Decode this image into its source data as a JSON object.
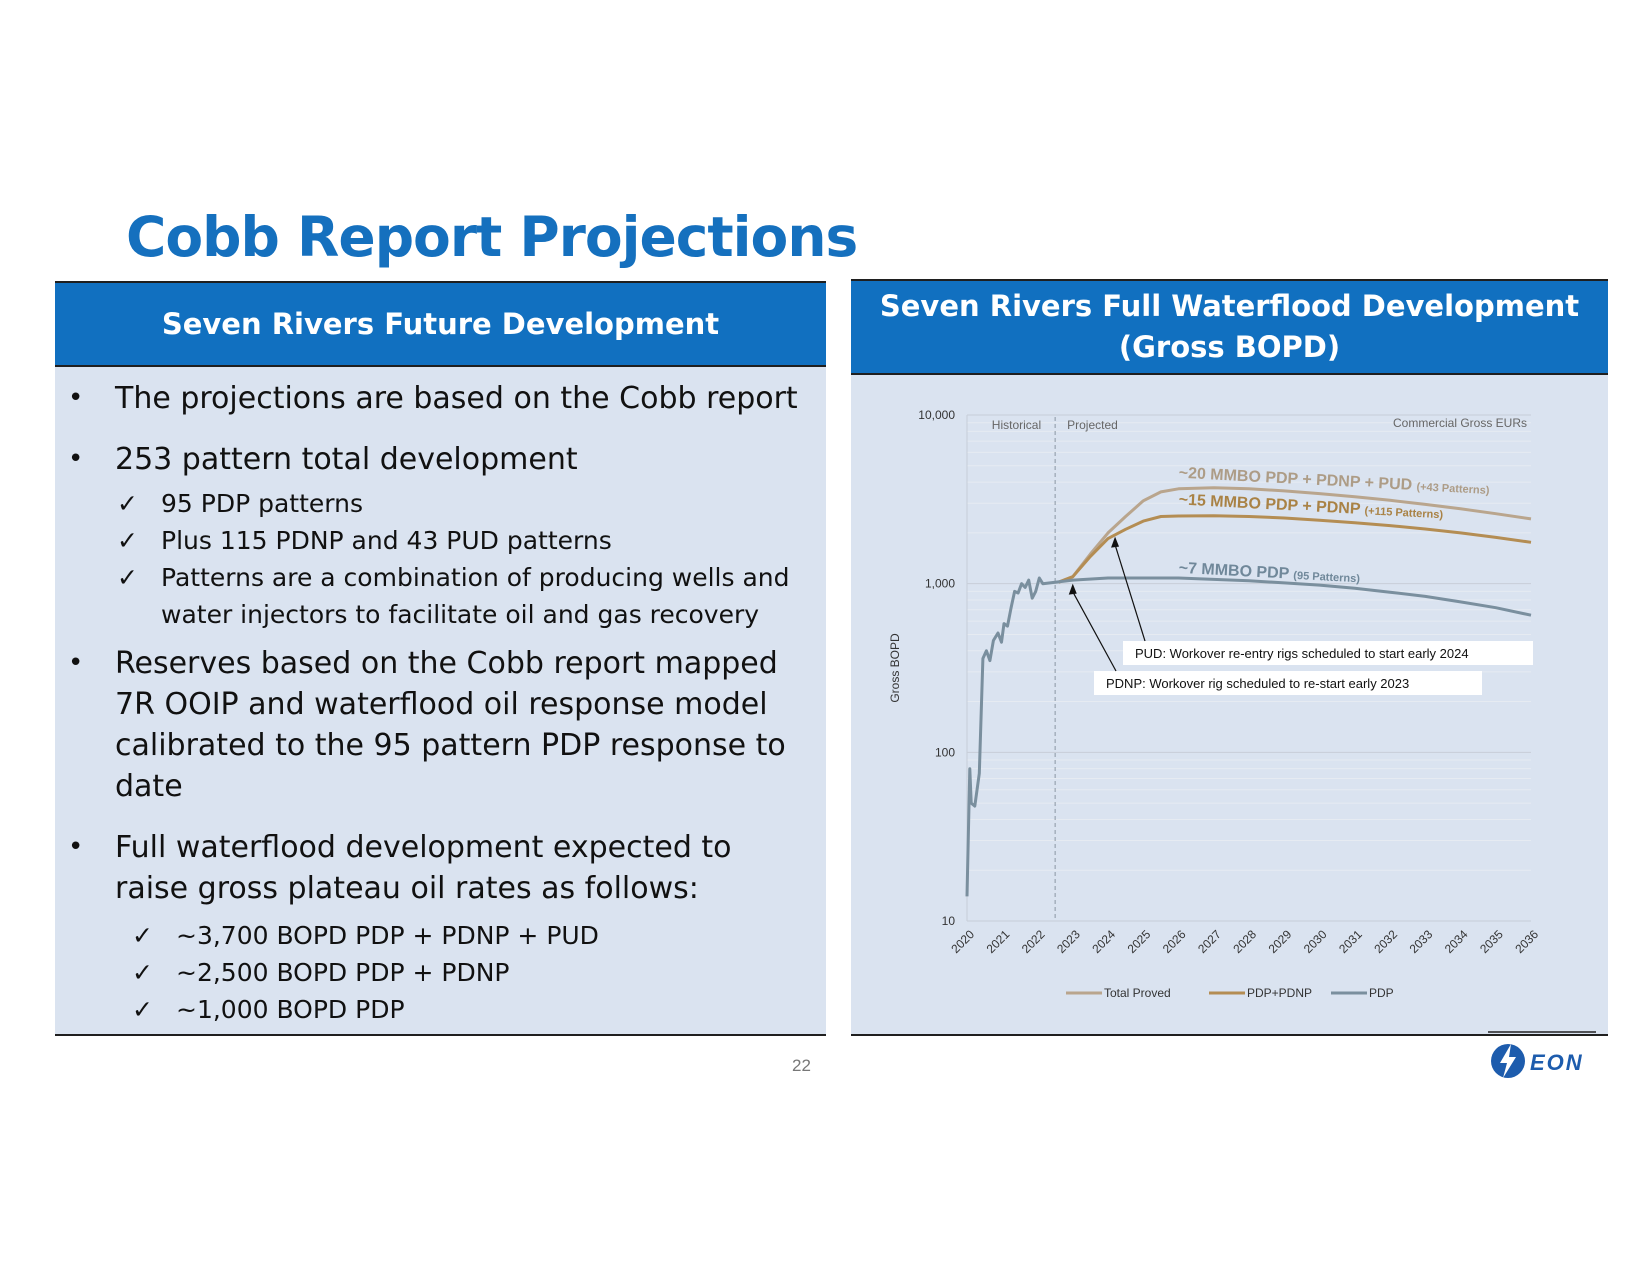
{
  "page": {
    "title": "Cobb Report Projections",
    "page_number": "22"
  },
  "left_panel": {
    "header": "Seven Rivers Future Development",
    "bullets": [
      {
        "text": "The projections are based on the Cobb report"
      },
      {
        "text": "253 pattern total development"
      },
      {
        "text": "Reserves based on the Cobb report mapped 7R OOIP and waterflood oil response model calibrated to the 95 pattern PDP response to date"
      },
      {
        "text": "Full waterflood development expected to raise gross plateau oil rates as follows:"
      }
    ],
    "sub_bullets_a": [
      "95 PDP patterns",
      "Plus 115 PDNP and 43 PUD patterns",
      "Patterns are a combination of producing wells and water injectors to facilitate oil and gas recovery"
    ],
    "sub_bullets_b": [
      "~3,700 BOPD PDP + PDNP + PUD",
      "~2,500 BOPD PDP + PDNP",
      "~1,000 BOPD PDP"
    ],
    "bullet_glyph": "•",
    "check_glyph": "✓"
  },
  "right_panel": {
    "header_line1": "Seven Rivers Full Waterflood Development",
    "header_line2": "(Gross BOPD)"
  },
  "logo": {
    "text": "EON"
  },
  "chart_data": {
    "type": "line",
    "y_scale": "log",
    "ylabel": "Gross BOPD",
    "ylim": [
      10,
      10000
    ],
    "y_ticks": [
      "10",
      "100",
      "1,000",
      "10,000"
    ],
    "x_ticks": [
      "2020",
      "2021",
      "2022",
      "2023",
      "2024",
      "2025",
      "2026",
      "2027",
      "2028",
      "2029",
      "2030",
      "2031",
      "2032",
      "2033",
      "2034",
      "2035",
      "2036"
    ],
    "xlim": [
      2020,
      2036
    ],
    "region_labels": {
      "historical": "Historical",
      "projected": "Projected",
      "divider_x": 2022.5
    },
    "corner_label": "Commercial Gross EURs",
    "colors": {
      "total": "#b9a58d",
      "pdnp": "#b48d53",
      "pdp": "#7a8f9e",
      "total_text": "#ad9c86",
      "pdnp_text": "#a98245",
      "pdp_text": "#70889a"
    },
    "legend": [
      "Total Proved",
      "PDP+PDNP",
      "PDP"
    ],
    "series": [
      {
        "name": "PDP",
        "points": [
          [
            2020.0,
            14
          ],
          [
            2020.08,
            80
          ],
          [
            2020.12,
            50
          ],
          [
            2020.22,
            48
          ],
          [
            2020.35,
            75
          ],
          [
            2020.45,
            360
          ],
          [
            2020.55,
            400
          ],
          [
            2020.65,
            350
          ],
          [
            2020.75,
            460
          ],
          [
            2020.88,
            510
          ],
          [
            2020.98,
            450
          ],
          [
            2021.05,
            580
          ],
          [
            2021.15,
            560
          ],
          [
            2021.25,
            720
          ],
          [
            2021.35,
            900
          ],
          [
            2021.45,
            880
          ],
          [
            2021.55,
            1000
          ],
          [
            2021.65,
            950
          ],
          [
            2021.75,
            1050
          ],
          [
            2021.85,
            820
          ],
          [
            2021.95,
            900
          ],
          [
            2022.05,
            1080
          ],
          [
            2022.15,
            1000
          ],
          [
            2022.5,
            1020
          ],
          [
            2023.0,
            1050
          ],
          [
            2024.0,
            1080
          ],
          [
            2025.0,
            1080
          ],
          [
            2026.0,
            1080
          ],
          [
            2027.0,
            1060
          ],
          [
            2028.0,
            1040
          ],
          [
            2029.0,
            1010
          ],
          [
            2030.0,
            980
          ],
          [
            2031.0,
            940
          ],
          [
            2032.0,
            890
          ],
          [
            2033.0,
            840
          ],
          [
            2034.0,
            780
          ],
          [
            2035.0,
            720
          ],
          [
            2036.0,
            650
          ]
        ]
      },
      {
        "name": "PDP+PDNP",
        "points": [
          [
            2022.6,
            1020
          ],
          [
            2023.0,
            1100
          ],
          [
            2023.5,
            1450
          ],
          [
            2024.0,
            1850
          ],
          [
            2024.5,
            2100
          ],
          [
            2025.0,
            2350
          ],
          [
            2025.5,
            2500
          ],
          [
            2026.0,
            2520
          ],
          [
            2027.0,
            2530
          ],
          [
            2028.0,
            2500
          ],
          [
            2029.0,
            2450
          ],
          [
            2030.0,
            2380
          ],
          [
            2031.0,
            2300
          ],
          [
            2032.0,
            2210
          ],
          [
            2033.0,
            2110
          ],
          [
            2034.0,
            2000
          ],
          [
            2035.0,
            1880
          ],
          [
            2036.0,
            1760
          ]
        ]
      },
      {
        "name": "Total Proved",
        "points": [
          [
            2022.6,
            1020
          ],
          [
            2023.0,
            1100
          ],
          [
            2023.5,
            1500
          ],
          [
            2024.0,
            2000
          ],
          [
            2024.5,
            2500
          ],
          [
            2025.0,
            3100
          ],
          [
            2025.5,
            3500
          ],
          [
            2026.0,
            3650
          ],
          [
            2027.0,
            3700
          ],
          [
            2028.0,
            3650
          ],
          [
            2029.0,
            3550
          ],
          [
            2030.0,
            3420
          ],
          [
            2031.0,
            3280
          ],
          [
            2032.0,
            3120
          ],
          [
            2033.0,
            2950
          ],
          [
            2034.0,
            2780
          ],
          [
            2035.0,
            2600
          ],
          [
            2036.0,
            2420
          ]
        ]
      }
    ],
    "annotations": {
      "total": {
        "main": "~20 MMBO PDP + PDNP + PUD",
        "small": "(+43 Patterns)"
      },
      "pdnp": {
        "main": "~15 MMBO PDP + PDNP",
        "small": "(+115 Patterns)"
      },
      "pdp": {
        "main": "~7 MMBO PDP",
        "small": "(95 Patterns)"
      },
      "pud_callout": "PUD: Workover re-entry rigs scheduled to start early 2024",
      "pdnp_callout": "PDNP: Workover rig scheduled to re-start early 2023"
    }
  }
}
